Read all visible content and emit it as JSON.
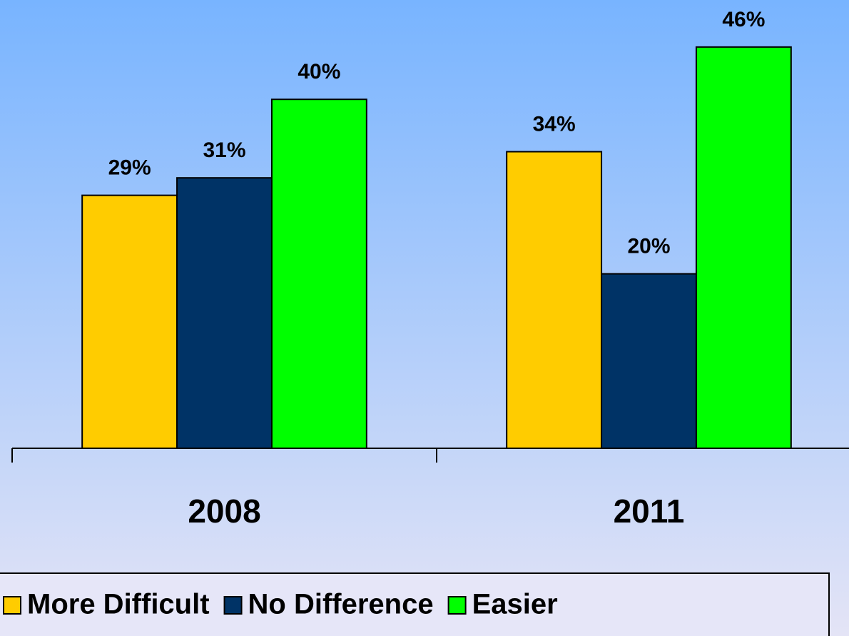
{
  "chart_data": {
    "type": "bar",
    "categories": [
      "2008",
      "2011"
    ],
    "series": [
      {
        "name": "More Difficult",
        "color": "#ffcc00",
        "values": [
          29,
          34
        ],
        "value_labels": [
          "29%",
          "34%"
        ]
      },
      {
        "name": "No Difference",
        "color": "#003366",
        "values": [
          31,
          20
        ],
        "value_labels": [
          "31%",
          "20%"
        ]
      },
      {
        "name": "Easier",
        "color": "#00ff00",
        "values": [
          40,
          46
        ],
        "value_labels": [
          "40%",
          "46%"
        ]
      }
    ],
    "ylim": [
      0,
      50
    ],
    "legend": "bottom"
  }
}
